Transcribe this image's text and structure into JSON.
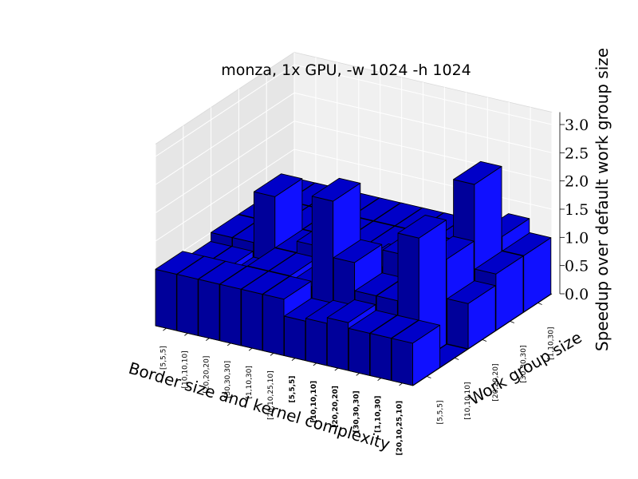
{
  "chart_data": {
    "type": "bar3d",
    "title": "monza, 1x GPU, -w 1024 -h 1024",
    "xlabel": "Border size and kernel complexity",
    "ylabel": "Work group size",
    "zlabel": "Speedup over default work group size",
    "zlim": [
      0,
      3.0
    ],
    "z_ticks": [
      "0.0",
      "0.5",
      "1.0",
      "1.5",
      "2.0",
      "2.5",
      "3.0"
    ],
    "x_categories": [
      "[5,5,5]",
      "[10,10,10]",
      "[20,20,20]",
      "[30,30,30]",
      "[1,10,30]",
      "[20,10,25,10]",
      "[5,5,5]",
      "[10,10,10]",
      "[20,20,20]",
      "[30,30,30]",
      "[1,10,30]",
      "[20,10,25,10]"
    ],
    "x_bold": [
      false,
      false,
      false,
      false,
      false,
      false,
      true,
      true,
      true,
      true,
      true,
      true
    ],
    "y_categories": [
      "[5,5,5]",
      "[10,10,10]",
      "[20,20,20]",
      "[30,30,30]",
      "[1,10,30]"
    ],
    "values": [
      [
        1.0,
        0.85,
        1.0,
        1.0,
        1.0
      ],
      [
        1.0,
        0.85,
        1.0,
        1.0,
        1.0
      ],
      [
        1.0,
        0.75,
        1.9,
        1.0,
        1.0
      ],
      [
        1.0,
        1.0,
        1.0,
        1.0,
        1.0
      ],
      [
        1.0,
        1.0,
        1.2,
        1.0,
        1.0
      ],
      [
        1.0,
        0.9,
        1.0,
        1.0,
        1.0
      ],
      [
        0.7,
        2.5,
        1.0,
        1.0,
        1.0
      ],
      [
        0.75,
        1.5,
        1.1,
        1.0,
        1.0
      ],
      [
        0.85,
        1.0,
        1.4,
        1.0,
        1.0
      ],
      [
        0.75,
        1.0,
        1.2,
        1.0,
        1.0
      ],
      [
        0.75,
        2.2,
        1.5,
        2.5,
        1.25
      ],
      [
        0.75,
        0.0,
        0.8,
        1.0,
        1.0
      ]
    ]
  }
}
